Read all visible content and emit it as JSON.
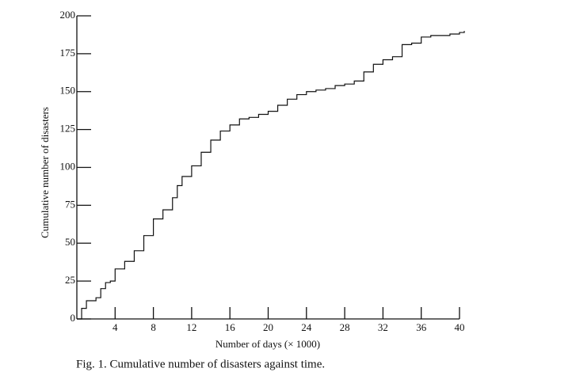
{
  "chart_data": {
    "type": "step",
    "x_label": "Number of days (× 1000)",
    "y_label": "Cumulative number of disasters",
    "caption": "Fig. 1. Cumulative number of disasters against time.",
    "x": [
      0,
      0.5,
      1,
      2,
      2.5,
      3,
      3.5,
      4,
      5,
      6,
      7,
      8,
      9,
      10,
      10.5,
      11,
      12,
      13,
      14,
      15,
      16,
      17,
      18,
      19,
      20,
      21,
      22,
      23,
      24,
      25,
      26,
      27,
      28,
      29,
      30,
      31,
      32,
      33,
      34,
      35,
      36,
      37,
      38,
      39,
      40,
      40.5
    ],
    "values": [
      0,
      7,
      12,
      14,
      20,
      24,
      25,
      33,
      38,
      45,
      55,
      66,
      72,
      80,
      88,
      94,
      101,
      110,
      118,
      124,
      128,
      132,
      133,
      135,
      137,
      141,
      145,
      148,
      150,
      151,
      152,
      154,
      155,
      157,
      163,
      168,
      171,
      173,
      181,
      182,
      186,
      187,
      187,
      188,
      189,
      190
    ],
    "color": "#111111",
    "xlim": [
      0,
      40
    ],
    "ylim": [
      0,
      200
    ],
    "xticks": [
      4,
      8,
      12,
      16,
      20,
      24,
      28,
      32,
      36,
      40
    ],
    "yticks": [
      0,
      25,
      50,
      75,
      100,
      125,
      150,
      175,
      200
    ]
  }
}
